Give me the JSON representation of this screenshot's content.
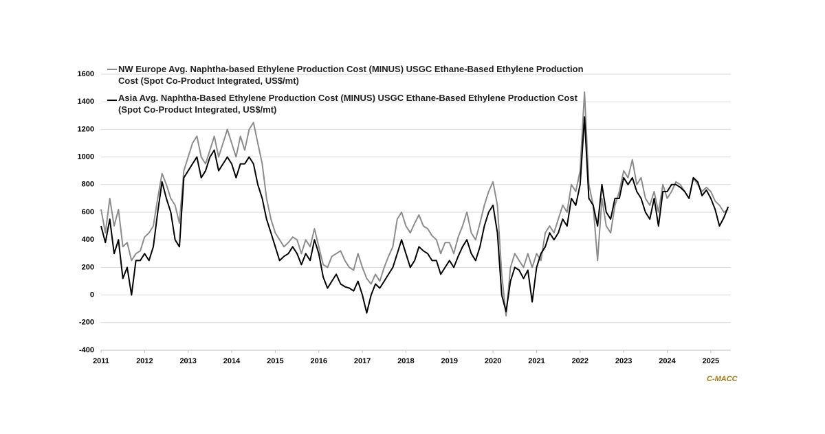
{
  "chart_data": {
    "type": "line",
    "series": [
      {
        "name": "NW Europe Avg. Naphtha-based Ethylene Production Cost (MINUS) USGC Ethane-Based Ethylene Production Cost (Spot Co-Product Integrated, US$/mt)",
        "color": "#8c8c8c",
        "values": [
          620,
          450,
          700,
          500,
          620,
          350,
          380,
          250,
          300,
          320,
          420,
          450,
          500,
          700,
          880,
          800,
          700,
          650,
          520,
          900,
          1000,
          1100,
          1150,
          1000,
          950,
          1050,
          1150,
          1000,
          1100,
          1200,
          1100,
          1000,
          1150,
          1050,
          1200,
          1250,
          1100,
          950,
          700,
          550,
          450,
          400,
          350,
          380,
          420,
          400,
          300,
          400,
          350,
          480,
          350,
          220,
          200,
          280,
          300,
          320,
          250,
          200,
          180,
          300,
          200,
          120,
          80,
          150,
          100,
          200,
          280,
          350,
          550,
          600,
          500,
          450,
          520,
          580,
          500,
          480,
          430,
          400,
          300,
          380,
          380,
          300,
          420,
          500,
          600,
          450,
          400,
          520,
          650,
          750,
          820,
          650,
          150,
          -150,
          200,
          300,
          250,
          200,
          300,
          200,
          300,
          250,
          450,
          500,
          450,
          550,
          650,
          600,
          800,
          750,
          900,
          1470,
          800,
          650,
          250,
          700,
          500,
          450,
          650,
          750,
          900,
          850,
          980,
          800,
          850,
          700,
          650,
          750,
          600,
          800,
          700,
          750,
          820,
          800,
          750,
          700,
          850,
          800,
          750,
          780,
          750,
          680,
          650,
          600,
          620
        ]
      },
      {
        "name": "Asia Avg. Naphtha-Based Ethylene Production Cost (MINUS) USGC Ethane-Based Ethylene Production Cost (Spot Co-Product Integrated, US$/mt)",
        "color": "#000000",
        "values": [
          500,
          380,
          550,
          300,
          400,
          120,
          200,
          0,
          250,
          250,
          300,
          250,
          350,
          600,
          820,
          700,
          600,
          400,
          350,
          850,
          900,
          950,
          1000,
          850,
          900,
          1000,
          1050,
          900,
          950,
          1000,
          950,
          850,
          950,
          950,
          1000,
          950,
          800,
          700,
          550,
          450,
          350,
          250,
          280,
          300,
          350,
          300,
          220,
          300,
          250,
          400,
          300,
          130,
          50,
          100,
          150,
          80,
          60,
          50,
          30,
          100,
          0,
          -130,
          0,
          80,
          50,
          100,
          150,
          200,
          300,
          400,
          300,
          200,
          250,
          350,
          320,
          300,
          250,
          250,
          150,
          200,
          250,
          200,
          280,
          350,
          400,
          300,
          250,
          350,
          500,
          600,
          650,
          450,
          0,
          -120,
          100,
          200,
          180,
          120,
          180,
          -50,
          200,
          300,
          350,
          450,
          400,
          450,
          550,
          500,
          700,
          650,
          800,
          1290,
          700,
          650,
          500,
          800,
          600,
          550,
          700,
          700,
          850,
          800,
          850,
          750,
          700,
          600,
          550,
          700,
          500,
          750,
          750,
          800,
          800,
          780,
          750,
          700,
          850,
          820,
          720,
          760,
          700,
          620,
          500,
          560,
          640
        ]
      }
    ],
    "x": [
      2011.0,
      2011.1,
      2011.2,
      2011.3,
      2011.4,
      2011.5,
      2011.6,
      2011.7,
      2011.8,
      2011.9,
      2012.0,
      2012.1,
      2012.2,
      2012.3,
      2012.4,
      2012.5,
      2012.6,
      2012.7,
      2012.8,
      2012.9,
      2013.0,
      2013.1,
      2013.2,
      2013.3,
      2013.4,
      2013.5,
      2013.6,
      2013.7,
      2013.8,
      2013.9,
      2014.0,
      2014.1,
      2014.2,
      2014.3,
      2014.4,
      2014.5,
      2014.6,
      2014.7,
      2014.8,
      2014.9,
      2015.0,
      2015.1,
      2015.2,
      2015.3,
      2015.4,
      2015.5,
      2015.6,
      2015.7,
      2015.8,
      2015.9,
      2016.0,
      2016.1,
      2016.2,
      2016.3,
      2016.4,
      2016.5,
      2016.6,
      2016.7,
      2016.8,
      2016.9,
      2017.0,
      2017.1,
      2017.2,
      2017.3,
      2017.4,
      2017.5,
      2017.6,
      2017.7,
      2017.8,
      2017.9,
      2018.0,
      2018.1,
      2018.2,
      2018.3,
      2018.4,
      2018.5,
      2018.6,
      2018.7,
      2018.8,
      2018.9,
      2019.0,
      2019.1,
      2019.2,
      2019.3,
      2019.4,
      2019.5,
      2019.6,
      2019.7,
      2019.8,
      2019.9,
      2020.0,
      2020.1,
      2020.2,
      2020.3,
      2020.4,
      2020.5,
      2020.6,
      2020.7,
      2020.8,
      2020.9,
      2021.0,
      2021.1,
      2021.2,
      2021.3,
      2021.4,
      2021.5,
      2021.6,
      2021.7,
      2021.8,
      2021.9,
      2022.0,
      2022.1,
      2022.2,
      2022.3,
      2022.4,
      2022.5,
      2022.6,
      2022.7,
      2022.8,
      2022.9,
      2023.0,
      2023.1,
      2023.2,
      2023.3,
      2023.4,
      2023.5,
      2023.6,
      2023.7,
      2023.8,
      2023.9,
      2024.0,
      2024.1,
      2024.2,
      2024.3,
      2024.4,
      2024.5,
      2024.6,
      2024.7,
      2024.8,
      2024.9,
      2025.0,
      2025.1,
      2025.2,
      2025.3,
      2025.4
    ],
    "xlim": [
      2011,
      2025.46
    ],
    "xticks": [
      2011,
      2012,
      2013,
      2014,
      2015,
      2016,
      2017,
      2018,
      2019,
      2020,
      2021,
      2022,
      2023,
      2024,
      2025
    ],
    "ylim": [
      -400,
      1600
    ],
    "yticks": [
      -400,
      -200,
      0,
      200,
      400,
      600,
      800,
      1000,
      1200,
      1400,
      1600
    ],
    "grid": true,
    "legend": "top-left",
    "source": "C-MACC"
  }
}
